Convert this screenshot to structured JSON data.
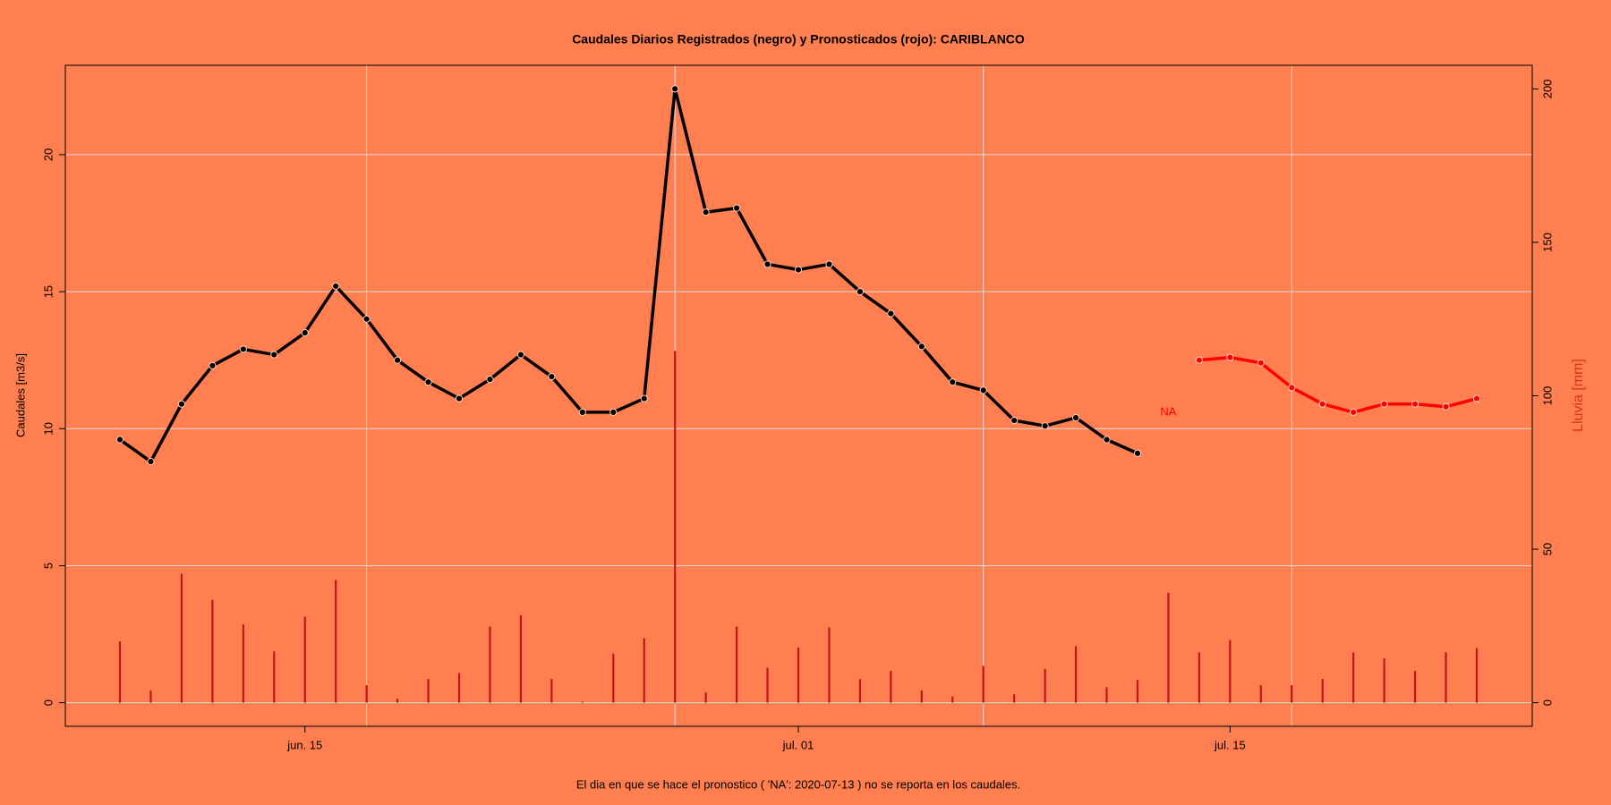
{
  "chart_data": {
    "type": "line",
    "title": "Caudales Diarios Registrados (negro) y Pronosticados (rojo): CARIBLANCO",
    "ylabel": "Caudales [m3/s]",
    "y2label": "Lluvia [mm]",
    "footnote": "El dia en que se hace el pronostico ( 'NA':  2020-07-13 ) no se reporta en los caudales.",
    "background": "#ff7f50",
    "x": [
      "2020-06-09",
      "2020-06-10",
      "2020-06-11",
      "2020-06-12",
      "2020-06-13",
      "2020-06-14",
      "2020-06-15",
      "2020-06-16",
      "2020-06-17",
      "2020-06-18",
      "2020-06-19",
      "2020-06-20",
      "2020-06-21",
      "2020-06-22",
      "2020-06-23",
      "2020-06-24",
      "2020-06-25",
      "2020-06-26",
      "2020-06-27",
      "2020-06-28",
      "2020-06-29",
      "2020-06-30",
      "2020-07-01",
      "2020-07-02",
      "2020-07-03",
      "2020-07-04",
      "2020-07-05",
      "2020-07-06",
      "2020-07-07",
      "2020-07-08",
      "2020-07-09",
      "2020-07-10",
      "2020-07-11",
      "2020-07-12",
      "2020-07-13",
      "2020-07-14",
      "2020-07-15",
      "2020-07-16",
      "2020-07-17",
      "2020-07-18",
      "2020-07-19",
      "2020-07-20",
      "2020-07-21",
      "2020-07-22",
      "2020-07-23"
    ],
    "series": [
      {
        "color": "#000000",
        "kind": "line",
        "values": [
          9.6,
          8.8,
          10.9,
          12.3,
          12.9,
          12.7,
          13.5,
          15.2,
          14.0,
          12.5,
          11.7,
          11.1,
          11.8,
          12.7,
          11.9,
          10.6,
          10.6,
          11.1,
          22.4,
          17.9,
          18.05,
          16.0,
          15.8,
          16.0,
          15.0,
          14.2,
          13.0,
          11.7,
          11.4,
          10.3,
          10.1,
          10.4,
          9.6,
          9.1,
          null,
          null,
          null,
          null,
          null,
          null,
          null,
          null,
          null,
          null,
          null
        ]
      },
      {
        "color": "#ff0000",
        "kind": "line",
        "values": [
          null,
          null,
          null,
          null,
          null,
          null,
          null,
          null,
          null,
          null,
          null,
          null,
          null,
          null,
          null,
          null,
          null,
          null,
          null,
          null,
          null,
          null,
          null,
          null,
          null,
          null,
          null,
          null,
          null,
          null,
          null,
          null,
          null,
          null,
          null,
          12.5,
          12.6,
          12.4,
          11.5,
          10.9,
          10.6,
          10.9,
          10.9,
          10.8,
          11.1
        ]
      },
      {
        "color": "#c0161b",
        "kind": "bars",
        "axis": "y2",
        "values": [
          20,
          4,
          42,
          33.5,
          25.5,
          16.7,
          28,
          40,
          5.7,
          1.3,
          7.7,
          9.7,
          24.8,
          28.5,
          7.7,
          0.3,
          16,
          21,
          114.6,
          3.3,
          24.8,
          11.4,
          18,
          24.5,
          7.7,
          10.4,
          4,
          2,
          12,
          2.7,
          11,
          18.4,
          5,
          7.4,
          35.8,
          16.4,
          20.4,
          5.7,
          5.7,
          7.7,
          16.4,
          14.4,
          10.4,
          16.4,
          17.8
        ]
      }
    ],
    "annotation": {
      "text": "NA",
      "x": "2020-07-13",
      "y": 10.6,
      "color": "#ff0000"
    },
    "xlim": [
      "2020-06-07T05:30:00Z",
      "2020-07-24T19:12:00Z"
    ],
    "xticks": [
      {
        "value": "2020-06-15",
        "label": "jun. 15"
      },
      {
        "value": "2020-07-01",
        "label": "jul. 01"
      },
      {
        "value": "2020-07-15",
        "label": "jul. 15"
      }
    ],
    "xgrid": [
      "2020-06-17",
      "2020-06-27",
      "2020-07-07",
      "2020-07-17"
    ],
    "ylim": [
      -0.86,
      23.26
    ],
    "yticks": [
      0,
      5,
      10,
      15,
      20
    ],
    "y2lim": [
      -7.7,
      207.7
    ],
    "y2ticks": [
      0,
      50,
      100,
      150,
      200
    ],
    "grid": true,
    "y2label_color": "#d9321e"
  }
}
